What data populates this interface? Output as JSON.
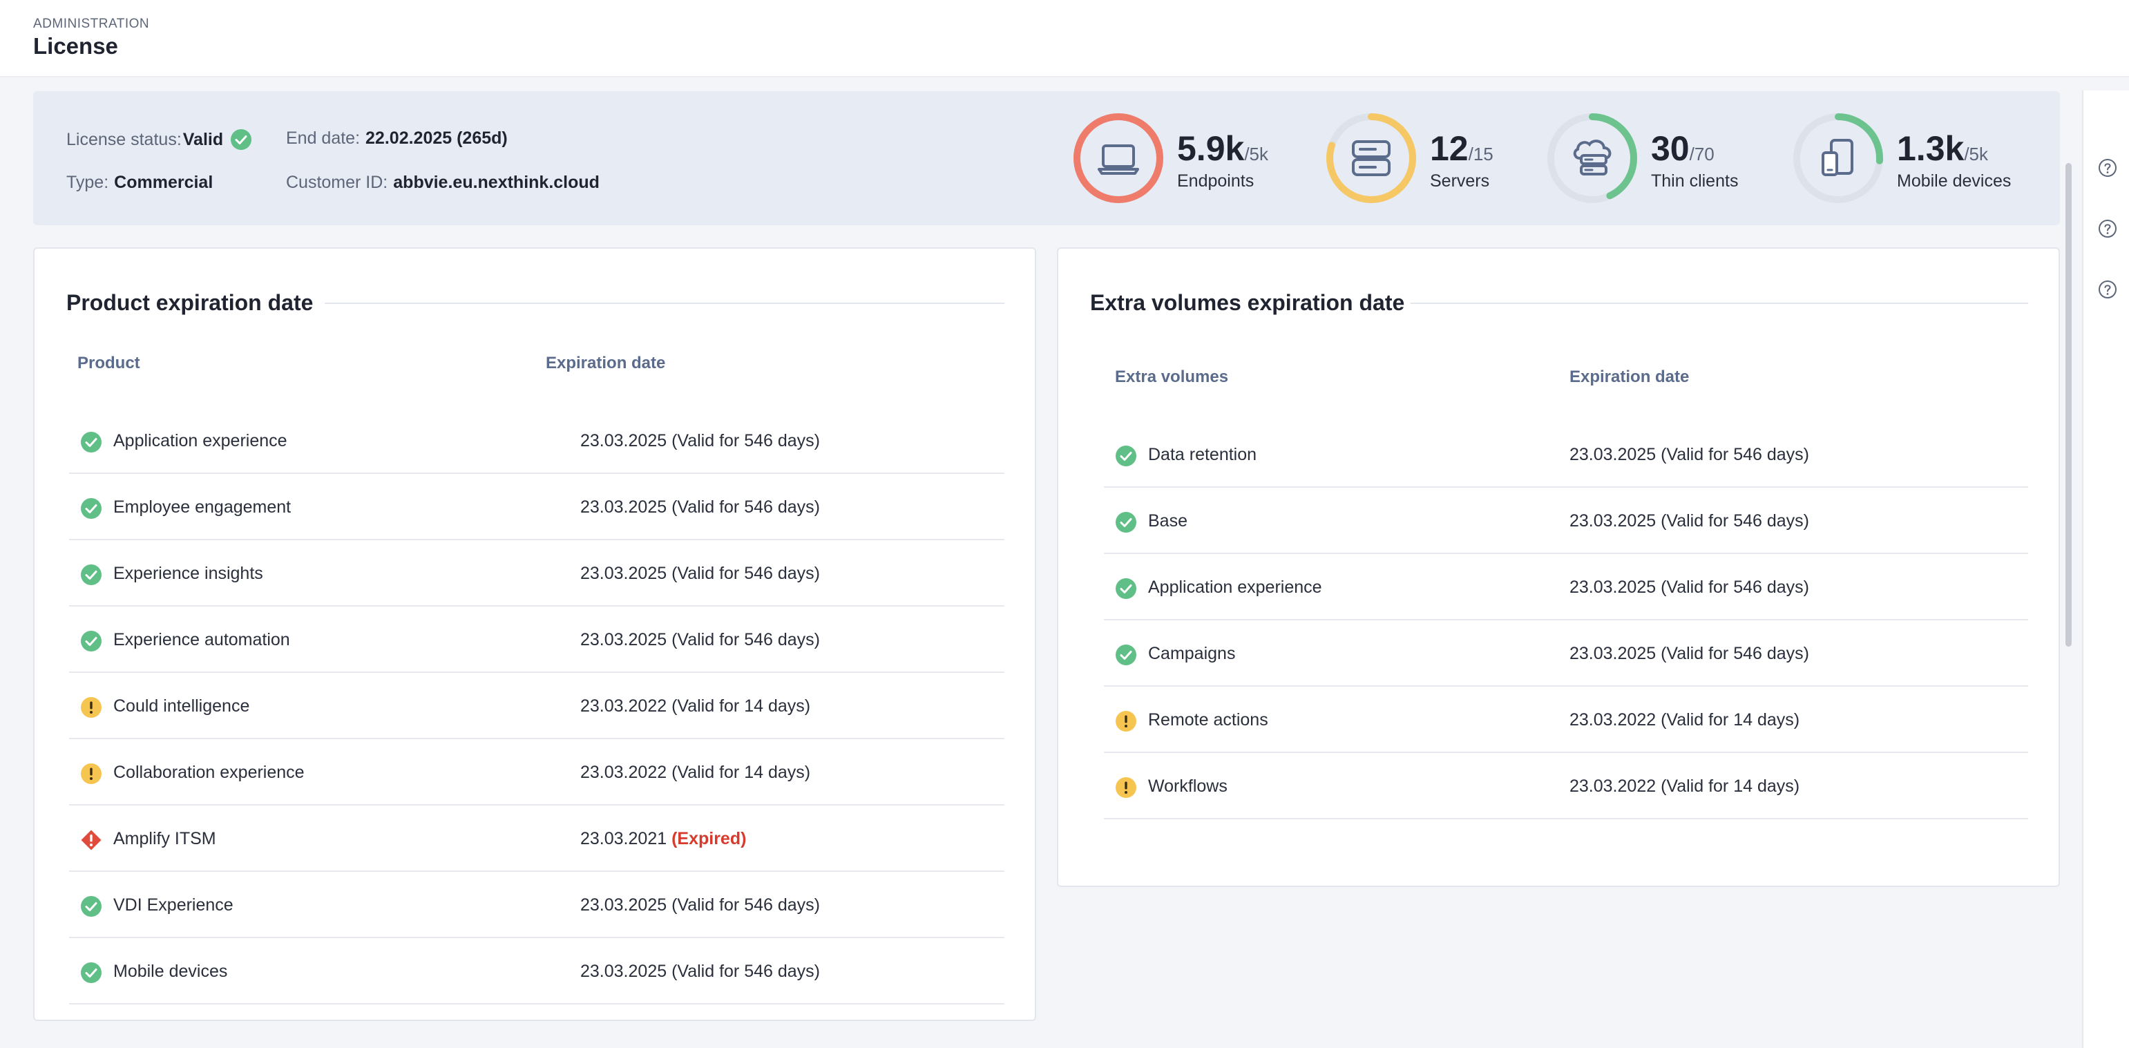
{
  "header": {
    "section": "ADMINISTRATION",
    "title": "License"
  },
  "summary": {
    "status_label": "License status:",
    "status_value": "Valid",
    "type_label": "Type:",
    "type_value": "Commercial",
    "end_date_label": "End date:",
    "end_date_value": "22.02.2025 (265d)",
    "customer_label": "Customer ID:",
    "customer_value": "abbvie.eu.nexthink.cloud"
  },
  "gauges": [
    {
      "value": "5.9k",
      "max": "/5k",
      "label": "Endpoints",
      "icon": "laptop-icon",
      "fill": 1.18,
      "color": "#ef7b6a"
    },
    {
      "value": "12",
      "max": "/15",
      "label": "Servers",
      "icon": "server-icon",
      "fill": 0.8,
      "color": "#f5c865"
    },
    {
      "value": "30",
      "max": "/70",
      "label": "Thin clients",
      "icon": "cloud-server-icon",
      "fill": 0.43,
      "color": "#6cc38e"
    },
    {
      "value": "1.3k",
      "max": "/5k",
      "label": "Mobile devices",
      "icon": "mobile-devices-icon",
      "fill": 0.26,
      "color": "#6cc38e"
    }
  ],
  "product_card": {
    "title": "Product expiration date",
    "col_product": "Product",
    "col_expiration": "Expiration date",
    "rows": [
      {
        "name": "Application experience",
        "date": "23.03.2025 (Valid for 546 days)",
        "status": "valid"
      },
      {
        "name": "Employee engagement",
        "date": "23.03.2025 (Valid for 546 days)",
        "status": "valid"
      },
      {
        "name": "Experience insights",
        "date": "23.03.2025 (Valid for 546 days)",
        "status": "valid"
      },
      {
        "name": "Experience automation",
        "date": "23.03.2025 (Valid for 546 days)",
        "status": "valid"
      },
      {
        "name": "Could intelligence",
        "date": "23.03.2022 (Valid for 14 days)",
        "status": "warning"
      },
      {
        "name": "Collaboration experience",
        "date": "23.03.2022 (Valid for 14 days)",
        "status": "warning"
      },
      {
        "name": "Amplify ITSM",
        "date": "23.03.2021",
        "expired": "(Expired)",
        "status": "expired"
      },
      {
        "name": "VDI Experience",
        "date": "23.03.2025 (Valid for 546 days)",
        "status": "valid"
      },
      {
        "name": "Mobile devices",
        "date": "23.03.2025 (Valid for 546 days)",
        "status": "valid"
      }
    ]
  },
  "volumes_card": {
    "title": "Extra volumes expiration date",
    "col_volumes": "Extra volumes",
    "col_expiration": "Expiration date",
    "rows": [
      {
        "name": "Data retention",
        "date": "23.03.2025 (Valid for 546 days)",
        "status": "valid"
      },
      {
        "name": "Base",
        "date": "23.03.2025 (Valid for 546 days)",
        "status": "valid"
      },
      {
        "name": "Application experience",
        "date": "23.03.2025 (Valid for 546 days)",
        "status": "valid"
      },
      {
        "name": "Campaigns",
        "date": "23.03.2025 (Valid for 546 days)",
        "status": "valid"
      },
      {
        "name": "Remote actions",
        "date": "23.03.2022 (Valid for 14 days)",
        "status": "warning"
      },
      {
        "name": "Workflows",
        "date": "23.03.2022 (Valid for 14 days)",
        "status": "warning"
      }
    ]
  },
  "colors": {
    "valid": "#5fbf86",
    "warning": "#f6c451",
    "expired": "#e04b3c",
    "track": "#dde1ea"
  }
}
